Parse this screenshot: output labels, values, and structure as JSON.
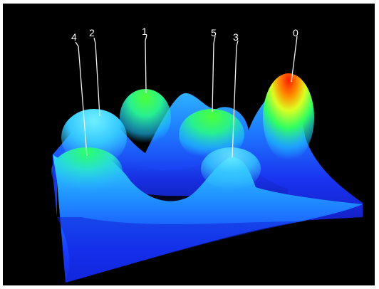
{
  "peaks": [
    {
      "label": "4"
    },
    {
      "label": "2"
    },
    {
      "label": "1"
    },
    {
      "label": "5"
    },
    {
      "label": "3"
    },
    {
      "label": "0"
    }
  ],
  "colors": {
    "background": "#000000",
    "low": "#1a2cff",
    "mid": "#1fd6ff",
    "high_green": "#2aff3a",
    "peak_orange": "#ff9900",
    "peak_red": "#ff2200"
  }
}
